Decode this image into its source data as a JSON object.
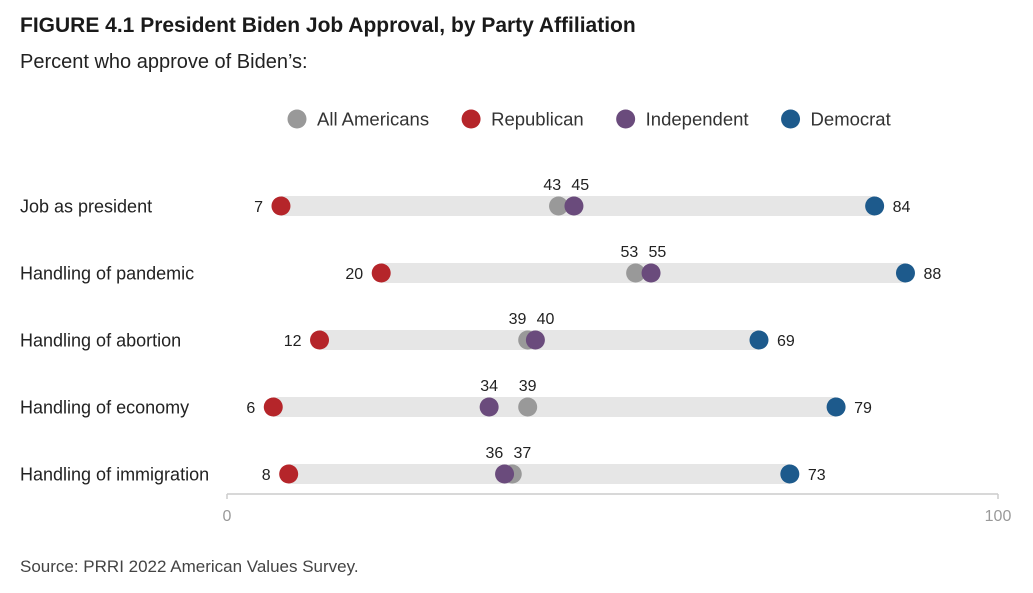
{
  "figure": {
    "title": "FIGURE 4.1  President Biden Job Approval, by Party Affiliation",
    "subtitle": "Percent who approve of Biden’s:",
    "source": "Source: PRRI 2022 American Values Survey."
  },
  "chart_data": {
    "type": "dot",
    "categories": [
      "Job as president",
      "Handling of pandemic",
      "Handling of abortion",
      "Handling of economy",
      "Handling of immigration"
    ],
    "series": [
      {
        "name": "All Americans",
        "color": "#999999",
        "values": [
          43,
          53,
          39,
          39,
          37
        ]
      },
      {
        "name": "Republican",
        "color": "#b5252a",
        "values": [
          7,
          20,
          12,
          6,
          8
        ]
      },
      {
        "name": "Independent",
        "color": "#6a4b7c",
        "values": [
          45,
          55,
          40,
          34,
          36
        ]
      },
      {
        "name": "Democrat",
        "color": "#1d5a8c",
        "values": [
          84,
          88,
          69,
          79,
          73
        ]
      }
    ],
    "xlim": [
      0,
      100
    ],
    "x_ticks": [
      0,
      100
    ],
    "legend_position": "top",
    "grid": false
  }
}
